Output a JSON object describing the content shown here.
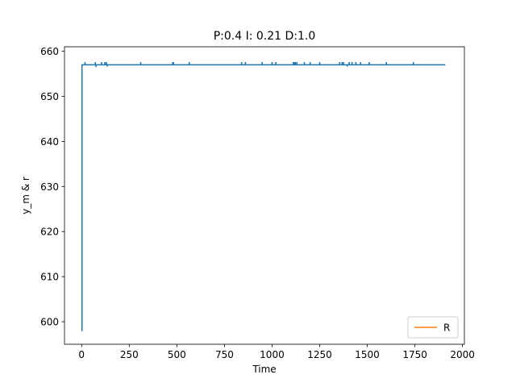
{
  "chart_data": {
    "type": "line",
    "title": "P:0.4 I: 0.21 D:1.0",
    "xlabel": "Time",
    "ylabel": "y_m & r",
    "xlim": [
      -90,
      2010
    ],
    "ylim": [
      595.0,
      661.0
    ],
    "xticks": [
      0,
      250,
      500,
      750,
      1000,
      1250,
      1500,
      1750,
      2000
    ],
    "xtick_labels": [
      "0",
      "250",
      "500",
      "750",
      "1000",
      "1250",
      "1500",
      "1750",
      "2000"
    ],
    "yticks": [
      600,
      610,
      620,
      630,
      640,
      650,
      660
    ],
    "ytick_labels": [
      "600",
      "610",
      "620",
      "630",
      "640",
      "650",
      "660"
    ],
    "grid": false,
    "legend_position": "lower-right",
    "series": [
      {
        "name": "",
        "color": "#1f77b4",
        "baseline": 657.0,
        "x": [
          0,
          2,
          2,
          1910
        ],
        "y": [
          598.0,
          598.0,
          657.0,
          657.0
        ],
        "spikes": [
          {
            "x": 18,
            "y": 657.6
          },
          {
            "x": 72,
            "y": 657.6
          },
          {
            "x": 75,
            "y": 656.5
          },
          {
            "x": 105,
            "y": 657.6
          },
          {
            "x": 122,
            "y": 657.6
          },
          {
            "x": 130,
            "y": 657.6
          },
          {
            "x": 135,
            "y": 656.6
          },
          {
            "x": 310,
            "y": 657.6
          },
          {
            "x": 478,
            "y": 657.6
          },
          {
            "x": 482,
            "y": 657.6
          },
          {
            "x": 565,
            "y": 657.6
          },
          {
            "x": 840,
            "y": 657.6
          },
          {
            "x": 860,
            "y": 657.6
          },
          {
            "x": 948,
            "y": 657.6
          },
          {
            "x": 1000,
            "y": 657.6
          },
          {
            "x": 1020,
            "y": 657.6
          },
          {
            "x": 1112,
            "y": 657.6
          },
          {
            "x": 1118,
            "y": 657.6
          },
          {
            "x": 1122,
            "y": 657.6
          },
          {
            "x": 1130,
            "y": 657.6
          },
          {
            "x": 1170,
            "y": 657.6
          },
          {
            "x": 1200,
            "y": 657.6
          },
          {
            "x": 1250,
            "y": 657.6
          },
          {
            "x": 1355,
            "y": 657.6
          },
          {
            "x": 1368,
            "y": 657.6
          },
          {
            "x": 1375,
            "y": 657.6
          },
          {
            "x": 1395,
            "y": 656.6
          },
          {
            "x": 1405,
            "y": 657.6
          },
          {
            "x": 1420,
            "y": 657.6
          },
          {
            "x": 1440,
            "y": 657.6
          },
          {
            "x": 1465,
            "y": 657.6
          },
          {
            "x": 1510,
            "y": 657.6
          },
          {
            "x": 1600,
            "y": 657.6
          },
          {
            "x": 1742,
            "y": 657.6
          }
        ]
      },
      {
        "name": "R",
        "color": "#ff7f0e",
        "x": [],
        "y": []
      }
    ]
  }
}
